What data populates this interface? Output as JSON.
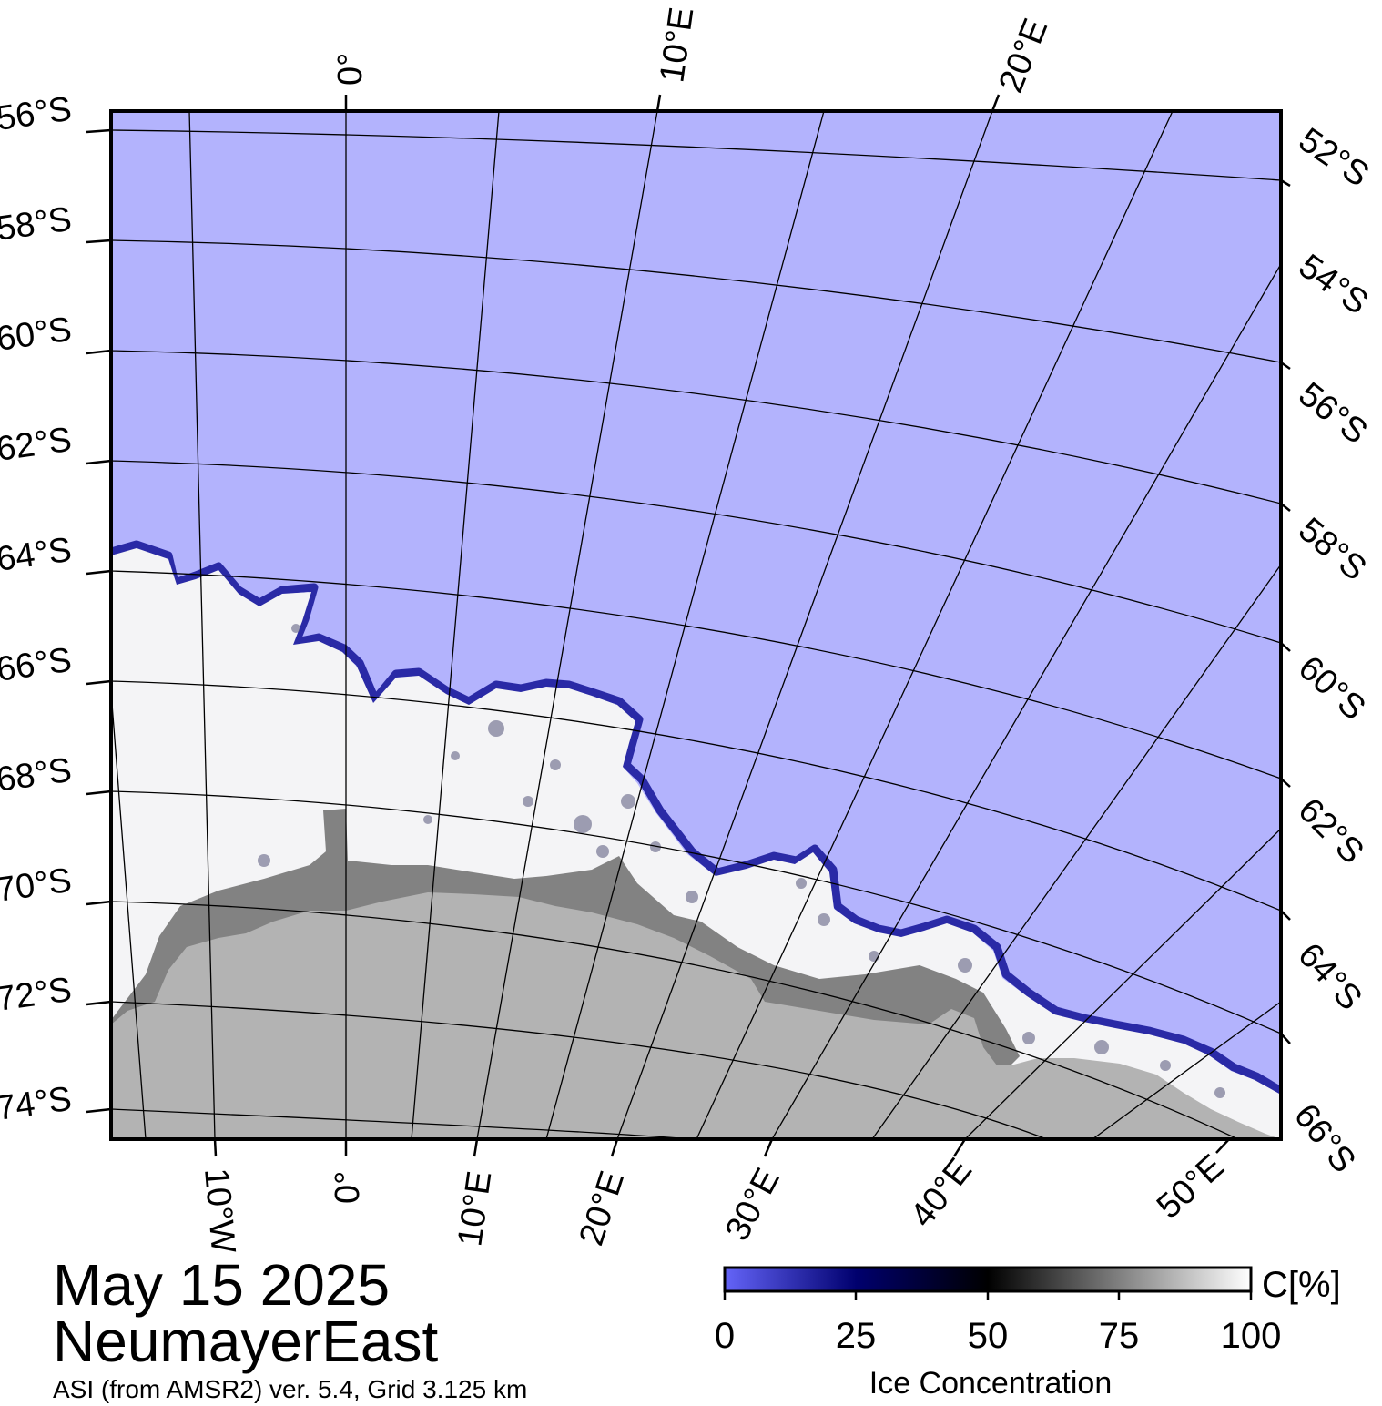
{
  "map": {
    "date": "May 15 2025",
    "region": "NeumayerEast",
    "source": "ASI (from AMSR2) ver. 5.4,  Grid 3.125 km",
    "layers": {
      "open_water_color": "#b3b3fd",
      "sea_ice_color": "#f4f4f6",
      "ice_edge_color": "#2a2aa6",
      "ice_shelf_color": "#828282",
      "land_color": "#b3b3b3",
      "graticule_color": "#000000"
    },
    "lat_labels_left": [
      "56°S",
      "58°S",
      "60°S",
      "62°S",
      "64°S",
      "66°S",
      "68°S",
      "70°S",
      "72°S",
      "74°S"
    ],
    "lat_labels_right": [
      "52°S",
      "54°S",
      "56°S",
      "58°S",
      "60°S",
      "62°S",
      "64°S",
      "66°S"
    ],
    "lon_labels_top": [
      "0°",
      "10°E",
      "20°E"
    ],
    "lon_labels_bottom": [
      "10°W",
      "0°",
      "10°E",
      "20°E",
      "30°E",
      "40°E",
      "50°E"
    ]
  },
  "colorbar": {
    "title": "Ice Concentration",
    "unit": "C[%]",
    "ticks": [
      "0",
      "25",
      "50",
      "75",
      "100"
    ],
    "colors": [
      "#6464f8",
      "#00006e",
      "#000000",
      "#808080",
      "#ffffff"
    ]
  }
}
